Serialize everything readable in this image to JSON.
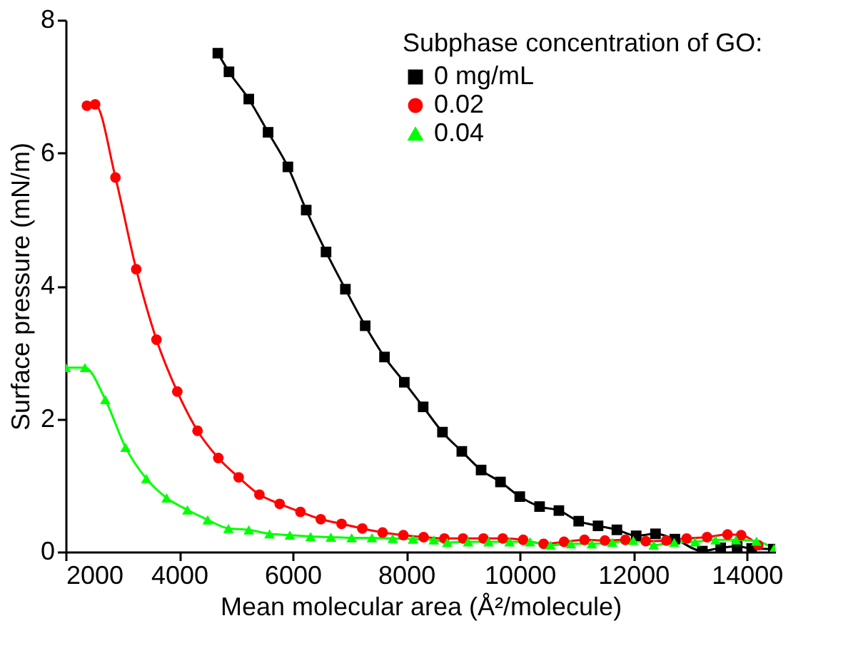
{
  "chart_data": {
    "type": "line",
    "xlabel": "Mean molecular area (Å²/molecule)",
    "ylabel": "Surface pressure (mN/m)",
    "legend_title": "Subphase concentration of GO:",
    "legend": "top right",
    "grid": false,
    "xlim": [
      2000,
      14500
    ],
    "xticks": [
      2000,
      4000,
      6000,
      8000,
      10000,
      12000,
      14000
    ],
    "ylim": [
      0,
      8
    ],
    "yticks": [
      0,
      2,
      4,
      6,
      8
    ],
    "series": [
      {
        "name": "0 mg/mL",
        "color": "#000000",
        "marker": "square",
        "x": [
          4681,
          4877,
          5226,
          5566,
          5915,
          6238,
          6587,
          6928,
          7277,
          7617,
          7966,
          8298,
          8638,
          8979,
          9319,
          9660,
          10000,
          10349,
          10689,
          11038,
          11379,
          11711,
          12051,
          12391,
          12732,
          13217,
          13540,
          13830,
          14085,
          14468
        ],
        "values": [
          7.5,
          7.22,
          6.81,
          6.31,
          5.79,
          5.14,
          4.51,
          3.95,
          3.4,
          2.93,
          2.55,
          2.18,
          1.8,
          1.51,
          1.23,
          1.05,
          0.83,
          0.68,
          0.62,
          0.46,
          0.39,
          0.33,
          0.24,
          0.27,
          0.19,
          0.01,
          0.06,
          0.08,
          0.05,
          0.04
        ]
      },
      {
        "name": "0.02",
        "color": "#ff0000",
        "marker": "circle",
        "x": [
          2374,
          2519,
          2877,
          3243,
          3600,
          3966,
          4323,
          4689,
          5047,
          5413,
          5770,
          6136,
          6494,
          6860,
          7226,
          7583,
          7949,
          8306,
          8672,
          9000,
          9360,
          9700,
          10060,
          10420,
          10780,
          11140,
          11500,
          11860,
          12220,
          12580,
          12940,
          13300,
          13660,
          13900,
          14200
        ],
        "values": [
          6.71,
          6.73,
          5.63,
          4.25,
          3.19,
          2.41,
          1.82,
          1.41,
          1.12,
          0.86,
          0.72,
          0.6,
          0.49,
          0.42,
          0.35,
          0.29,
          0.25,
          0.22,
          0.2,
          0.2,
          0.2,
          0.2,
          0.18,
          0.12,
          0.15,
          0.18,
          0.17,
          0.18,
          0.16,
          0.17,
          0.2,
          0.22,
          0.26,
          0.25,
          0.1
        ]
      },
      {
        "name": "0.04",
        "color": "#00ff00",
        "marker": "triangle",
        "x": [
          2000,
          2340,
          2698,
          3055,
          3421,
          3779,
          4145,
          4502,
          4868,
          5226,
          5591,
          5949,
          6315,
          6672,
          7038,
          7396,
          7762,
          8119,
          8485,
          8723,
          9090,
          9450,
          9820,
          10180,
          10540,
          10900,
          11270,
          11630,
          12000,
          12360,
          12720,
          13090,
          13450,
          13810,
          14170,
          14480
        ],
        "values": [
          2.77,
          2.77,
          2.29,
          1.57,
          1.1,
          0.81,
          0.63,
          0.48,
          0.35,
          0.33,
          0.27,
          0.25,
          0.23,
          0.22,
          0.21,
          0.21,
          0.2,
          0.19,
          0.18,
          0.14,
          0.15,
          0.15,
          0.15,
          0.15,
          0.1,
          0.12,
          0.12,
          0.14,
          0.17,
          0.1,
          0.14,
          0.15,
          0.18,
          0.18,
          0.16,
          0.05
        ]
      }
    ]
  }
}
